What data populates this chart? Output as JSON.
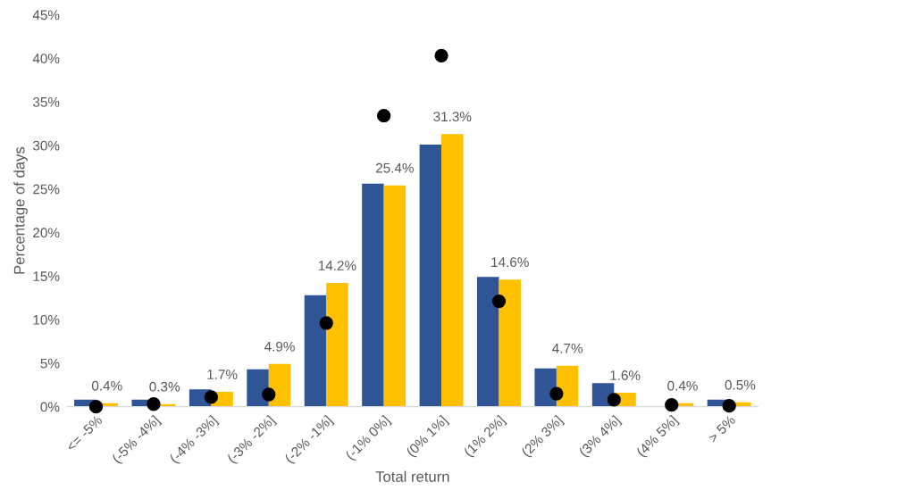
{
  "chart_data": {
    "type": "bar",
    "xlabel": "Total return",
    "ylabel": "Percentage of days",
    "categories": [
      "<= -5%",
      "(-5% -4%]",
      "(-4% -3%]",
      "(-3% -2%]",
      "(-2% -1%]",
      "(-1% 0%]",
      "(0% 1%]",
      "(1% 2%]",
      "(2% 3%]",
      "(3% 4%]",
      "(4% 5%]",
      "> 5%"
    ],
    "series": [
      {
        "color": "#2f5597",
        "values": [
          0.8,
          0.8,
          2.0,
          4.3,
          12.8,
          25.6,
          30.1,
          14.9,
          4.4,
          2.7,
          0.0,
          0.8
        ]
      },
      {
        "color": "#ffc000",
        "values": [
          0.4,
          0.3,
          1.7,
          4.9,
          14.2,
          25.4,
          31.3,
          14.6,
          4.7,
          1.6,
          0.4,
          0.5
        ],
        "value_labels": [
          "0.4%",
          "0.3%",
          "1.7%",
          "4.9%",
          "14.2%",
          "25.4%",
          "31.3%",
          "14.6%",
          "4.7%",
          "1.6%",
          "0.4%",
          "0.5%"
        ]
      },
      {
        "type": "scatter",
        "color": "#000000",
        "marker": "circle",
        "values": [
          0.0,
          0.3,
          1.1,
          1.4,
          9.6,
          33.4,
          40.3,
          12.1,
          1.5,
          0.8,
          0.2,
          0.1
        ]
      }
    ],
    "ylim": [
      0,
      45
    ],
    "yticks": [
      {
        "value": 0,
        "label": "0%"
      },
      {
        "value": 5,
        "label": "5%"
      },
      {
        "value": 10,
        "label": "10%"
      },
      {
        "value": 15,
        "label": "15%"
      },
      {
        "value": 20,
        "label": "20%"
      },
      {
        "value": 25,
        "label": "25%"
      },
      {
        "value": 30,
        "label": "30%"
      },
      {
        "value": 35,
        "label": "35%"
      },
      {
        "value": 40,
        "label": "40%"
      },
      {
        "value": 45,
        "label": "45%"
      }
    ],
    "grid": false
  }
}
